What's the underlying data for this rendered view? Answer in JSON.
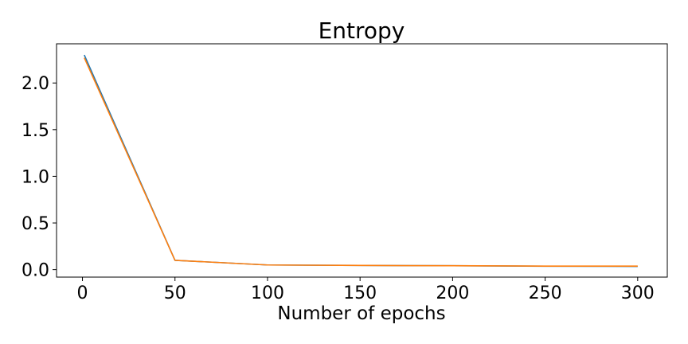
{
  "chart_data": {
    "type": "line",
    "title": "Entropy",
    "xlabel": "Number of epochs",
    "ylabel": "",
    "xlim": [
      -14,
      316
    ],
    "ylim": [
      -0.08,
      2.42
    ],
    "xticks": [
      0,
      50,
      100,
      150,
      200,
      250,
      300
    ],
    "xtick_labels": [
      "0",
      "50",
      "100",
      "150",
      "200",
      "250",
      "300"
    ],
    "yticks": [
      0.0,
      0.5,
      1.0,
      1.5,
      2.0
    ],
    "ytick_labels": [
      "0.0",
      "0.5",
      "1.0",
      "1.5",
      "2.0"
    ],
    "grid": false,
    "legend": "none",
    "series": [
      {
        "color": "#1f77b4",
        "x": [
          1,
          50,
          100,
          150,
          200,
          250,
          300
        ],
        "y": [
          2.3,
          0.1,
          0.05,
          0.045,
          0.042,
          0.037,
          0.035
        ]
      },
      {
        "color": "#ff7f0e",
        "x": [
          1,
          50,
          100,
          150,
          200,
          250,
          300
        ],
        "y": [
          2.27,
          0.1,
          0.05,
          0.045,
          0.042,
          0.038,
          0.038
        ]
      }
    ]
  }
}
